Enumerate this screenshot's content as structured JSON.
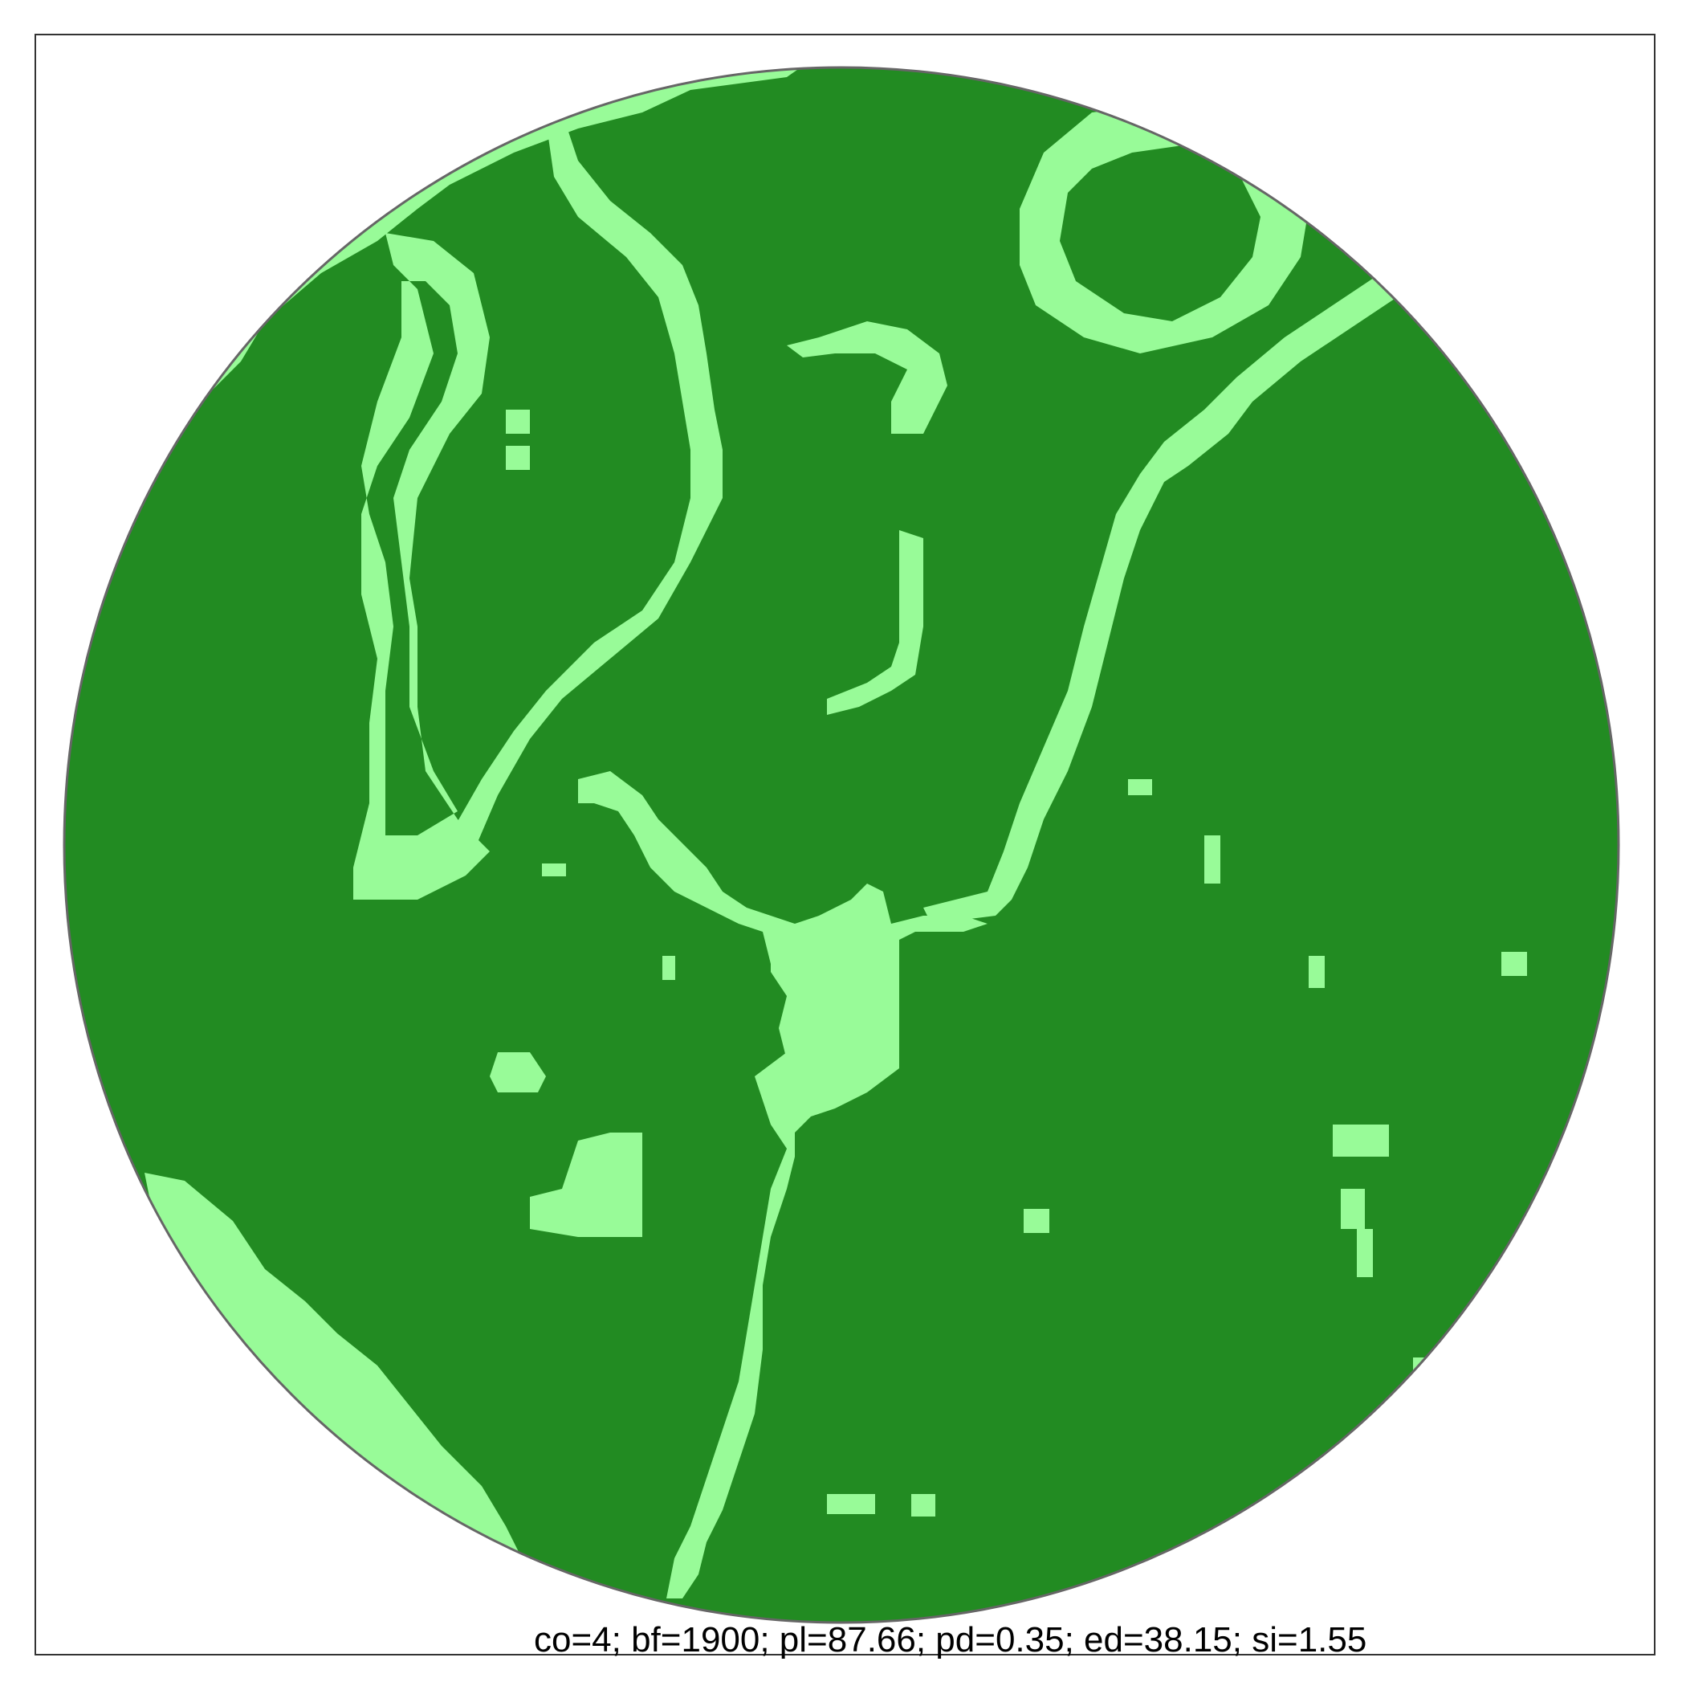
{
  "map": {
    "stats_text": "co=4; bf=1900; pl=87.66; pd=0.35; ed=38.15; si=1.55",
    "colors": {
      "background": "#ffffff",
      "frame": "#333333",
      "circle_outline": "#666666",
      "habitat": "#228B22",
      "matrix": "#98FB98"
    },
    "legend": "none"
  }
}
